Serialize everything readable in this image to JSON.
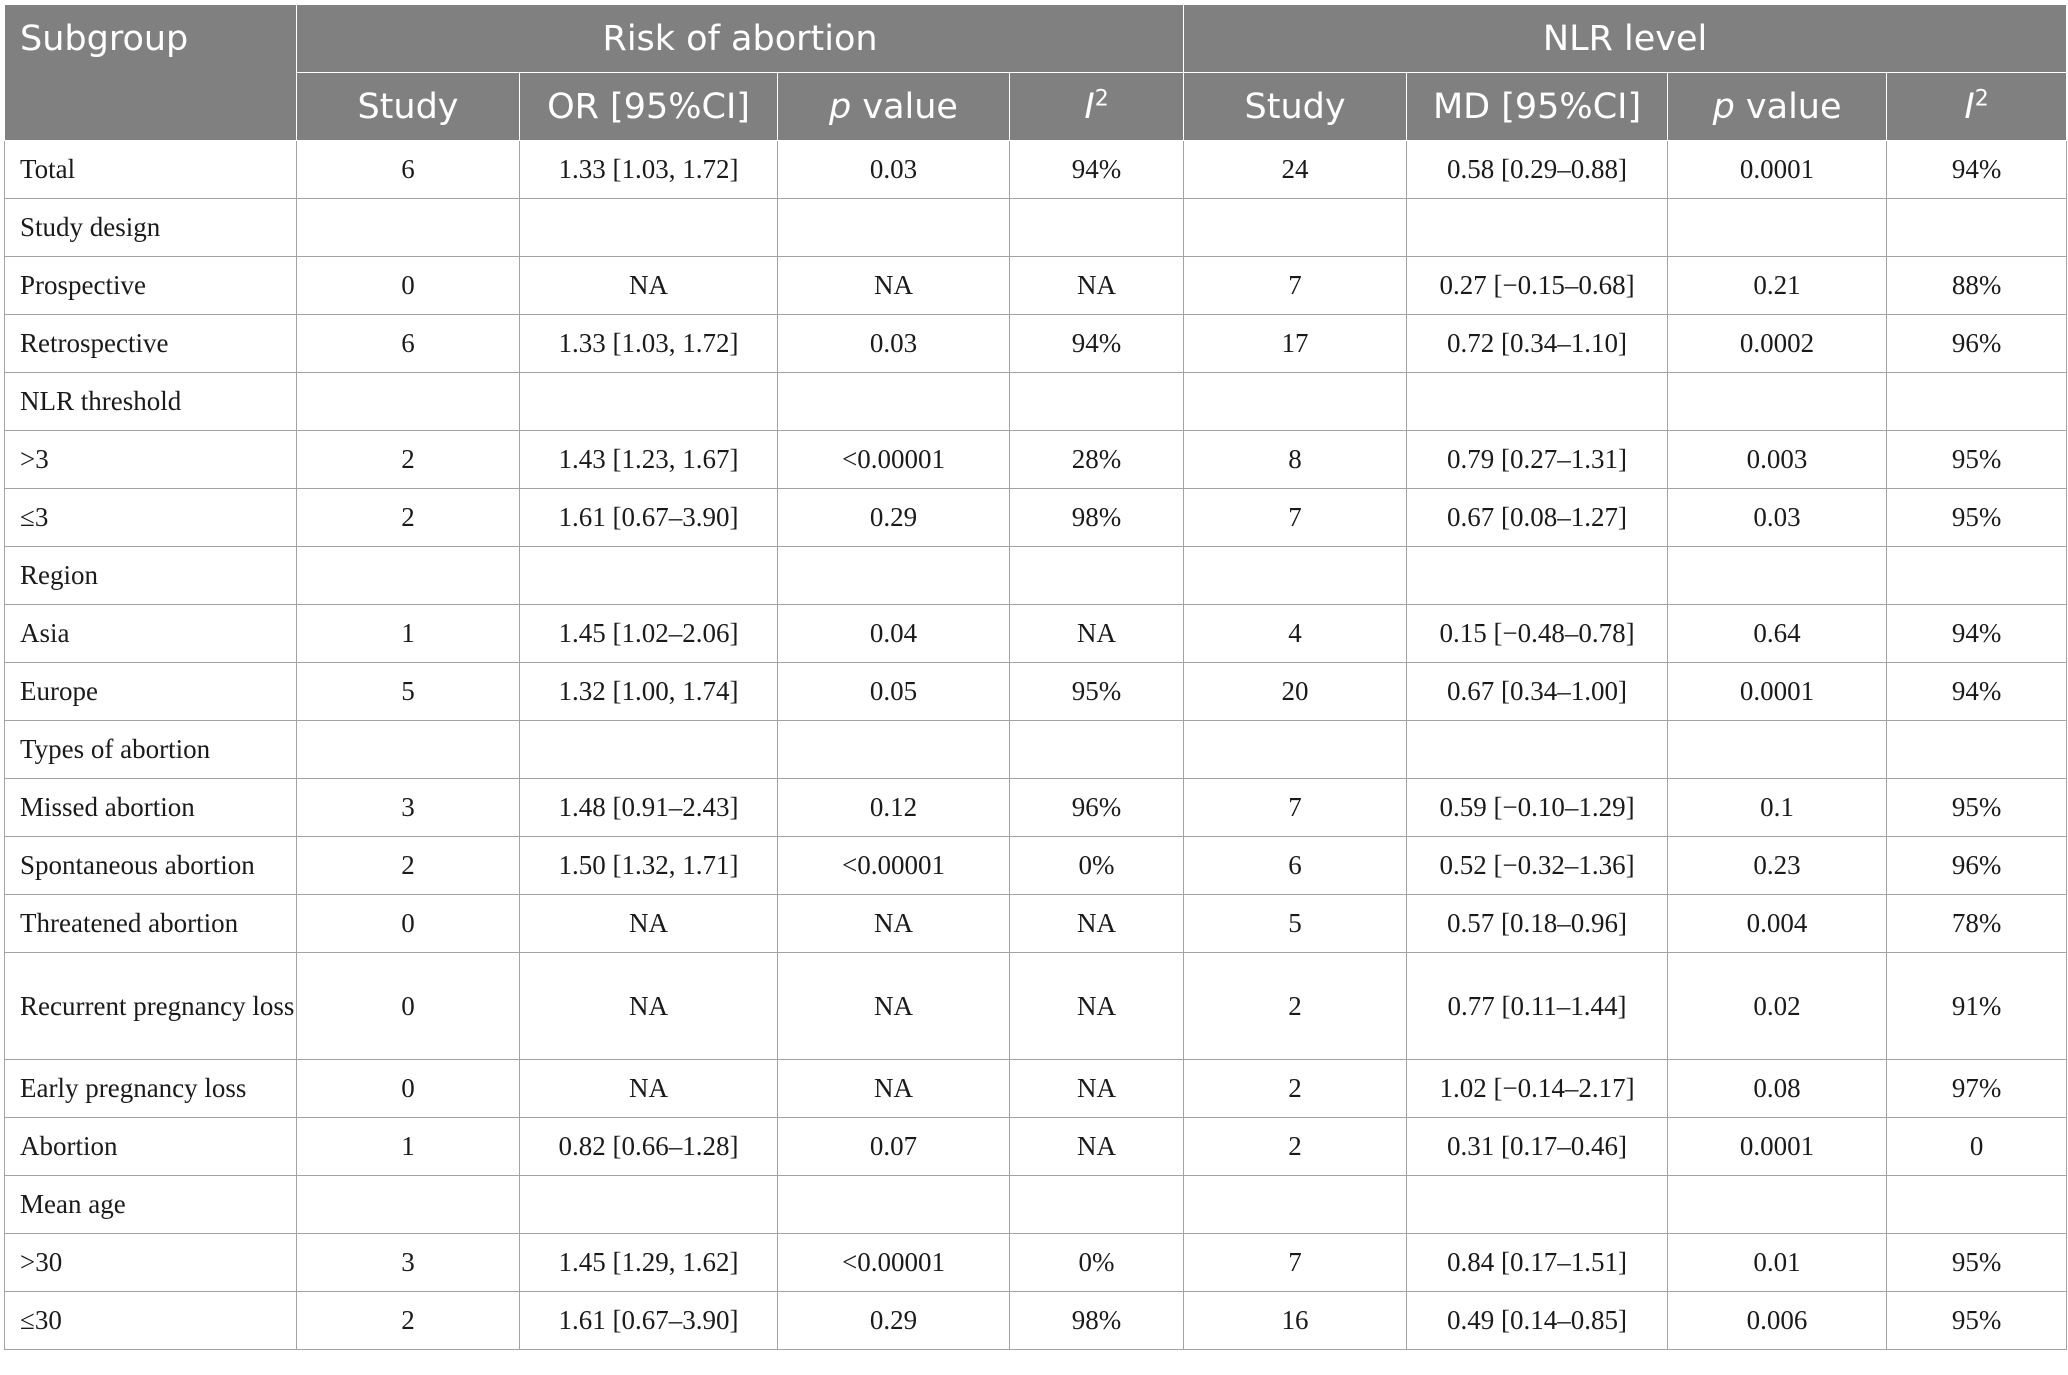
{
  "header": {
    "subgroup": "Subgroup",
    "risk_group": "Risk of abortion",
    "nlr_group": "NLR level",
    "study": "Study",
    "or_ci": "OR [95%CI]",
    "md_ci": "MD [95%CI]",
    "p_italic": "p",
    "p_rest": " value",
    "i_italic": "I",
    "i_sup": "2"
  },
  "rows": [
    {
      "label": "Total",
      "r_study": "6",
      "r_or": "1.33 [1.03, 1.72]",
      "r_p": "0.03",
      "r_i2": "94%",
      "n_study": "24",
      "n_md": "0.58 [0.29–0.88]",
      "n_p": "0.0001",
      "n_i2": "94%"
    },
    {
      "label": "Study design",
      "r_study": "",
      "r_or": "",
      "r_p": "",
      "r_i2": "",
      "n_study": "",
      "n_md": "",
      "n_p": "",
      "n_i2": ""
    },
    {
      "label": "Prospective",
      "r_study": "0",
      "r_or": "NA",
      "r_p": "NA",
      "r_i2": "NA",
      "n_study": "7",
      "n_md": "0.27 [−0.15–0.68]",
      "n_p": "0.21",
      "n_i2": "88%"
    },
    {
      "label": "Retrospective",
      "r_study": "6",
      "r_or": "1.33 [1.03, 1.72]",
      "r_p": "0.03",
      "r_i2": "94%",
      "n_study": "17",
      "n_md": "0.72 [0.34–1.10]",
      "n_p": "0.0002",
      "n_i2": "96%"
    },
    {
      "label": "NLR threshold",
      "r_study": "",
      "r_or": "",
      "r_p": "",
      "r_i2": "",
      "n_study": "",
      "n_md": "",
      "n_p": "",
      "n_i2": ""
    },
    {
      "label": ">3",
      "r_study": "2",
      "r_or": "1.43 [1.23, 1.67]",
      "r_p": "<0.00001",
      "r_i2": "28%",
      "n_study": "8",
      "n_md": "0.79 [0.27–1.31]",
      "n_p": "0.003",
      "n_i2": "95%"
    },
    {
      "label": "≤3",
      "r_study": "2",
      "r_or": "1.61 [0.67–3.90]",
      "r_p": "0.29",
      "r_i2": "98%",
      "n_study": "7",
      "n_md": "0.67 [0.08–1.27]",
      "n_p": "0.03",
      "n_i2": "95%"
    },
    {
      "label": "Region",
      "r_study": "",
      "r_or": "",
      "r_p": "",
      "r_i2": "",
      "n_study": "",
      "n_md": "",
      "n_p": "",
      "n_i2": ""
    },
    {
      "label": "Asia",
      "r_study": "1",
      "r_or": "1.45 [1.02–2.06]",
      "r_p": "0.04",
      "r_i2": "NA",
      "n_study": "4",
      "n_md": "0.15 [−0.48–0.78]",
      "n_p": "0.64",
      "n_i2": "94%"
    },
    {
      "label": "Europe",
      "r_study": "5",
      "r_or": "1.32 [1.00, 1.74]",
      "r_p": "0.05",
      "r_i2": "95%",
      "n_study": "20",
      "n_md": "0.67 [0.34–1.00]",
      "n_p": "0.0001",
      "n_i2": "94%"
    },
    {
      "label": "Types of abortion",
      "r_study": "",
      "r_or": "",
      "r_p": "",
      "r_i2": "",
      "n_study": "",
      "n_md": "",
      "n_p": "",
      "n_i2": ""
    },
    {
      "label": "Missed abortion",
      "r_study": "3",
      "r_or": "1.48 [0.91–2.43]",
      "r_p": "0.12",
      "r_i2": "96%",
      "n_study": "7",
      "n_md": "0.59 [−0.10–1.29]",
      "n_p": "0.1",
      "n_i2": "95%"
    },
    {
      "label": "Spontaneous abortion",
      "r_study": "2",
      "r_or": "1.50 [1.32, 1.71]",
      "r_p": "<0.00001",
      "r_i2": "0%",
      "n_study": "6",
      "n_md": "0.52 [−0.32–1.36]",
      "n_p": "0.23",
      "n_i2": "96%"
    },
    {
      "label": "Threatened abortion",
      "r_study": "0",
      "r_or": "NA",
      "r_p": "NA",
      "r_i2": "NA",
      "n_study": "5",
      "n_md": "0.57 [0.18–0.96]",
      "n_p": "0.004",
      "n_i2": "78%"
    },
    {
      "label": "Recurrent pregnancy loss",
      "r_study": "0",
      "r_or": "NA",
      "r_p": "NA",
      "r_i2": "NA",
      "n_study": "2",
      "n_md": "0.77 [0.11–1.44]",
      "n_p": "0.02",
      "n_i2": "91%"
    },
    {
      "label": "Early pregnancy loss",
      "r_study": "0",
      "r_or": "NA",
      "r_p": "NA",
      "r_i2": "NA",
      "n_study": "2",
      "n_md": "1.02 [−0.14–2.17]",
      "n_p": "0.08",
      "n_i2": "97%"
    },
    {
      "label": "Abortion",
      "r_study": "1",
      "r_or": "0.82 [0.66–1.28]",
      "r_p": "0.07",
      "r_i2": "NA",
      "n_study": "2",
      "n_md": "0.31 [0.17–0.46]",
      "n_p": "0.0001",
      "n_i2": "0"
    },
    {
      "label": "Mean age",
      "r_study": "",
      "r_or": "",
      "r_p": "",
      "r_i2": "",
      "n_study": "",
      "n_md": "",
      "n_p": "",
      "n_i2": ""
    },
    {
      "label": ">30",
      "r_study": "3",
      "r_or": "1.45 [1.29, 1.62]",
      "r_p": "<0.00001",
      "r_i2": "0%",
      "n_study": "7",
      "n_md": "0.84 [0.17–1.51]",
      "n_p": "0.01",
      "n_i2": "95%"
    },
    {
      "label": "≤30",
      "r_study": "2",
      "r_or": "1.61 [0.67–3.90]",
      "r_p": "0.29",
      "r_i2": "98%",
      "n_study": "16",
      "n_md": "0.49 [0.14–0.85]",
      "n_p": "0.006",
      "n_i2": "95%"
    }
  ]
}
